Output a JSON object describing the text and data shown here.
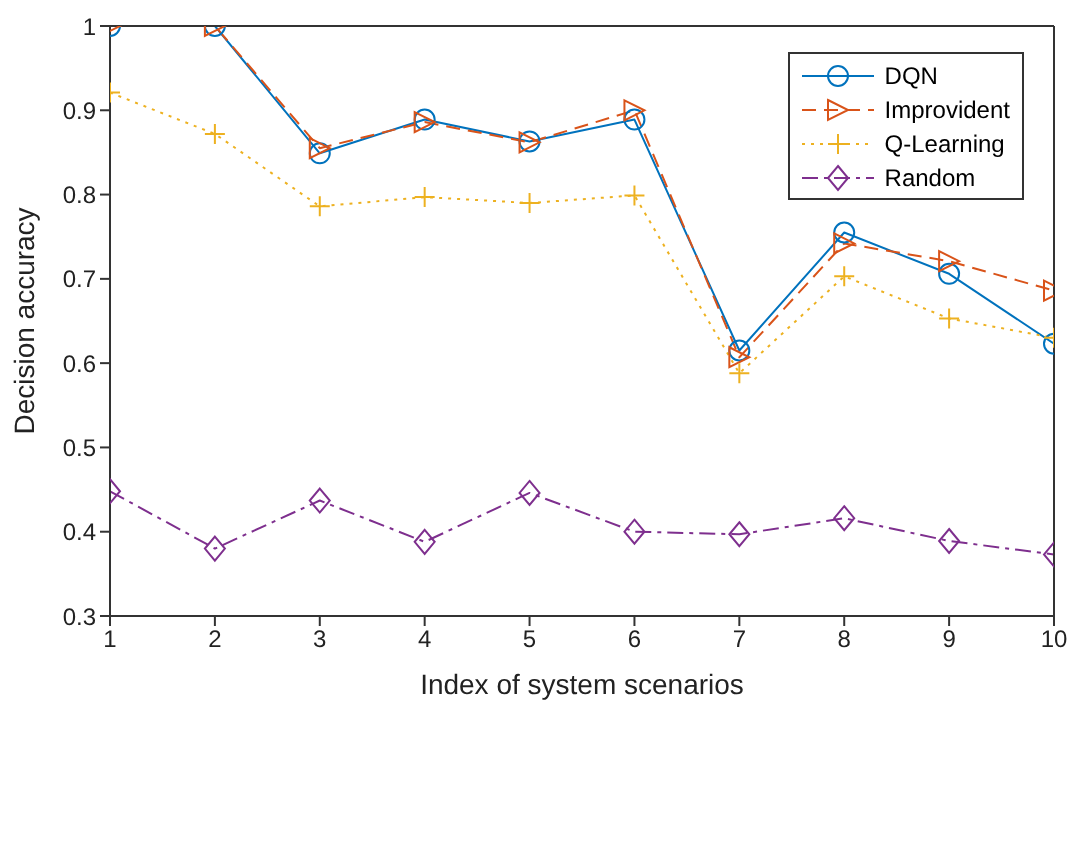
{
  "chart_data": {
    "type": "line",
    "xlabel": "Index of system scenarios",
    "ylabel": "Decision accuracy",
    "x": [
      1,
      2,
      3,
      4,
      5,
      6,
      7,
      8,
      9,
      10
    ],
    "series": [
      {
        "name": "DQN",
        "color": "#0072bd",
        "marker": "circle",
        "line_style": "solid",
        "values": [
          1,
          1,
          0.849,
          0.889,
          0.863,
          0.889,
          0.615,
          0.755,
          0.706,
          0.623
        ]
      },
      {
        "name": "Improvident",
        "color": "#d95319",
        "marker": "triangle",
        "line_style": "dashed",
        "values": [
          1,
          1,
          0.855,
          0.886,
          0.862,
          0.9,
          0.607,
          0.742,
          0.721,
          0.686
        ]
      },
      {
        "name": "Q-Learning",
        "color": "#edb120",
        "marker": "cross",
        "line_style": "dotted",
        "values": [
          0.921,
          0.872,
          0.786,
          0.797,
          0.79,
          0.799,
          0.588,
          0.703,
          0.653,
          0.63
        ]
      },
      {
        "name": "Random",
        "color": "#7e2f8e",
        "marker": "diamond",
        "line_style": "dashdot",
        "values": [
          0.448,
          0.38,
          0.437,
          0.388,
          0.446,
          0.4,
          0.397,
          0.416,
          0.389,
          0.373
        ]
      }
    ],
    "xlim": [
      1,
      10
    ],
    "xticks": [
      1,
      2,
      3,
      4,
      5,
      6,
      7,
      8,
      9,
      10
    ],
    "ylim": [
      0.3,
      1
    ],
    "yticks": [
      0.3,
      0.4,
      0.5,
      0.6,
      0.7,
      0.8,
      0.9,
      1
    ],
    "grid": false,
    "legend": "top right"
  }
}
